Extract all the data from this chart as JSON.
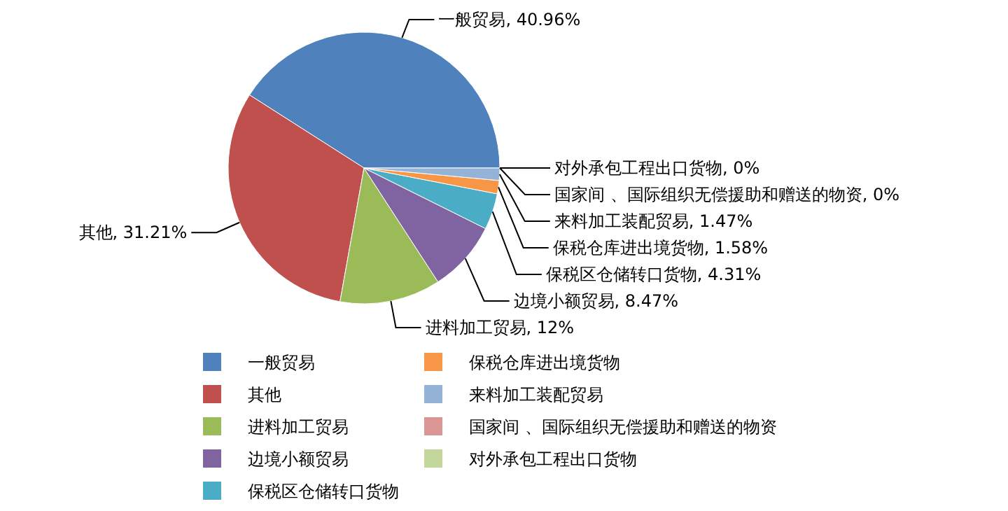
{
  "chart_data": {
    "type": "pie",
    "categories": [
      "一般贸易",
      "其他",
      "进料加工贸易",
      "边境小额贸易",
      "保税区仓储转口货物",
      "保税仓库进出境货物",
      "来料加工装配贸易",
      "国家间 、国际组织无偿援助和赠送的物资",
      "对外承包工程出口货物"
    ],
    "values": [
      40.96,
      31.21,
      12,
      8.47,
      4.31,
      1.58,
      1.47,
      0,
      0
    ],
    "value_labels": [
      "一般贸易, 40.96%",
      "其他, 31.21%",
      "进料加工贸易, 12%",
      "边境小额贸易, 8.47%",
      "保税区仓储转口货物, 4.31%",
      "保税仓库进出境货物, 1.58%",
      "来料加工装配贸易, 1.47%",
      "国家间 、国际组织无偿援助和赠送的物资, 0%",
      "对外承包工程出口货物, 0%"
    ],
    "colors": [
      "#4f81bd",
      "#c0504d",
      "#9bbb59",
      "#8064a2",
      "#4bacc6",
      "#f79646",
      "#95b3d7",
      "#d99694",
      "#c3d69b"
    ],
    "legend": "bottom"
  }
}
